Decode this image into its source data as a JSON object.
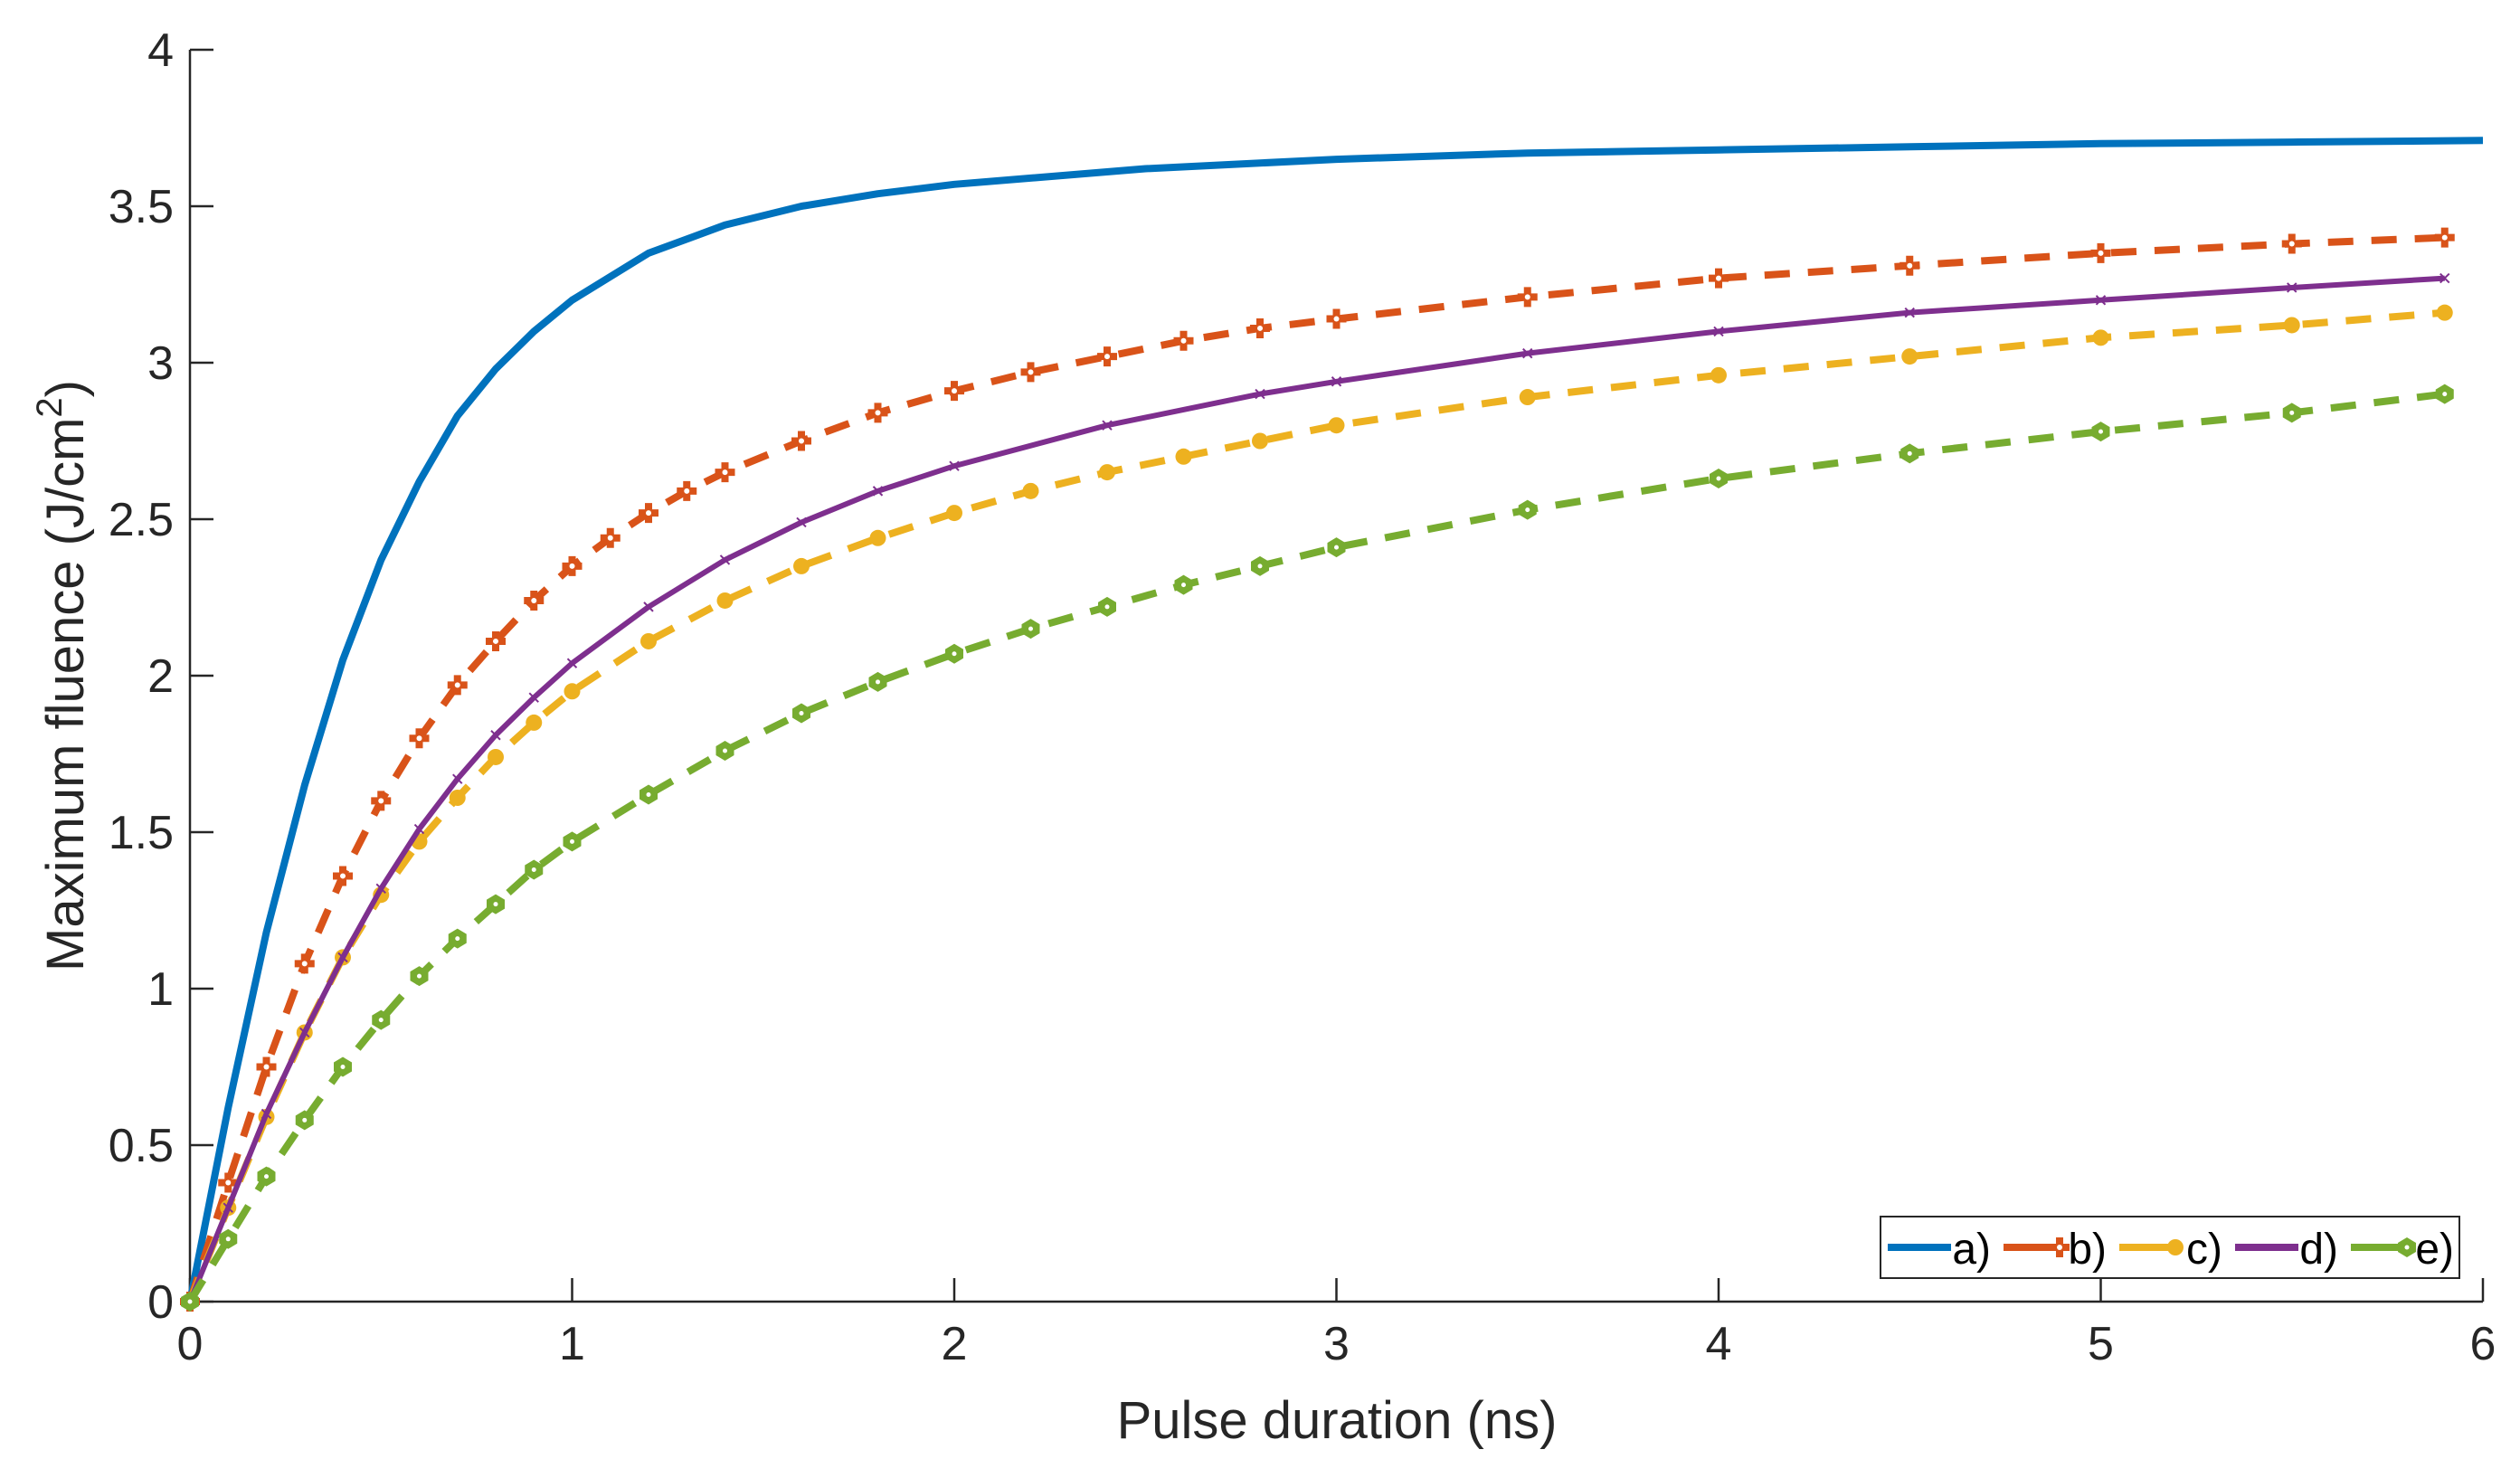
{
  "chart_data": {
    "type": "line",
    "title": "",
    "xlabel": "Pulse duration (ns)",
    "ylabel_main": "Maximum fluence (J/cm",
    "ylabel_sup": "2",
    "ylabel_close": ")",
    "xlim": [
      0,
      6
    ],
    "ylim": [
      0,
      4
    ],
    "xticks": [
      "0",
      "1",
      "2",
      "3",
      "4",
      "5",
      "6"
    ],
    "yticks": [
      "0",
      "0.5",
      "1",
      "1.5",
      "2",
      "2.5",
      "3",
      "3.5",
      "4"
    ],
    "grid": false,
    "legend_placement": "bottom-right",
    "series": [
      {
        "name": "a)",
        "color": "#0072BD",
        "style": "solid",
        "marker": "none",
        "x": [
          0,
          0.1,
          0.2,
          0.3,
          0.4,
          0.5,
          0.6,
          0.7,
          0.8,
          0.9,
          1.0,
          1.2,
          1.4,
          1.6,
          1.8,
          2.0,
          2.5,
          3.0,
          3.5,
          4.0,
          4.5,
          5.0,
          5.5,
          6.0
        ],
        "y": [
          0,
          0.62,
          1.18,
          1.65,
          2.05,
          2.37,
          2.62,
          2.83,
          2.98,
          3.1,
          3.2,
          3.35,
          3.44,
          3.5,
          3.54,
          3.57,
          3.62,
          3.65,
          3.67,
          3.68,
          3.69,
          3.7,
          3.705,
          3.71
        ]
      },
      {
        "name": "b)",
        "color": "#D95319",
        "style": "dashed",
        "marker": "cross",
        "x": [
          0,
          0.1,
          0.2,
          0.3,
          0.4,
          0.5,
          0.6,
          0.7,
          0.8,
          0.9,
          1.0,
          1.1,
          1.2,
          1.3,
          1.4,
          1.6,
          1.8,
          2.0,
          2.2,
          2.4,
          2.6,
          2.8,
          3.0,
          3.5,
          4.0,
          4.5,
          5.0,
          5.5,
          5.9
        ],
        "y": [
          0,
          0.38,
          0.75,
          1.08,
          1.36,
          1.6,
          1.8,
          1.97,
          2.11,
          2.24,
          2.35,
          2.44,
          2.52,
          2.59,
          2.65,
          2.75,
          2.84,
          2.91,
          2.97,
          3.02,
          3.07,
          3.11,
          3.14,
          3.21,
          3.27,
          3.31,
          3.35,
          3.38,
          3.4
        ]
      },
      {
        "name": "c)",
        "color": "#EDB120",
        "style": "dashed",
        "marker": "circle",
        "x": [
          0,
          0.1,
          0.2,
          0.3,
          0.4,
          0.5,
          0.6,
          0.7,
          0.8,
          0.9,
          1.0,
          1.2,
          1.4,
          1.6,
          1.8,
          2.0,
          2.2,
          2.4,
          2.6,
          2.8,
          3.0,
          3.5,
          4.0,
          4.5,
          5.0,
          5.5,
          5.9
        ],
        "y": [
          0,
          0.3,
          0.59,
          0.86,
          1.1,
          1.3,
          1.47,
          1.61,
          1.74,
          1.85,
          1.95,
          2.11,
          2.24,
          2.35,
          2.44,
          2.52,
          2.59,
          2.65,
          2.7,
          2.75,
          2.8,
          2.89,
          2.96,
          3.02,
          3.08,
          3.12,
          3.16
        ]
      },
      {
        "name": "d)",
        "color": "#7E2F8E",
        "style": "solid",
        "marker": "small",
        "x": [
          0,
          0.1,
          0.2,
          0.3,
          0.4,
          0.5,
          0.6,
          0.7,
          0.8,
          0.9,
          1.0,
          1.2,
          1.4,
          1.6,
          1.8,
          2.0,
          2.4,
          2.8,
          3.0,
          3.5,
          4.0,
          4.5,
          5.0,
          5.5,
          5.9
        ],
        "y": [
          0,
          0.3,
          0.6,
          0.86,
          1.1,
          1.32,
          1.51,
          1.67,
          1.81,
          1.93,
          2.04,
          2.22,
          2.37,
          2.49,
          2.59,
          2.67,
          2.8,
          2.9,
          2.94,
          3.03,
          3.1,
          3.16,
          3.2,
          3.24,
          3.27
        ]
      },
      {
        "name": "e)",
        "color": "#77AC30",
        "style": "dashed",
        "marker": "hexagram",
        "x": [
          0,
          0.1,
          0.2,
          0.3,
          0.4,
          0.5,
          0.6,
          0.7,
          0.8,
          0.9,
          1.0,
          1.2,
          1.4,
          1.6,
          1.8,
          2.0,
          2.2,
          2.4,
          2.6,
          2.8,
          3.0,
          3.5,
          4.0,
          4.5,
          5.0,
          5.5,
          5.9
        ],
        "y": [
          0,
          0.2,
          0.4,
          0.58,
          0.75,
          0.9,
          1.04,
          1.16,
          1.27,
          1.38,
          1.47,
          1.62,
          1.76,
          1.88,
          1.98,
          2.07,
          2.15,
          2.22,
          2.29,
          2.35,
          2.41,
          2.53,
          2.63,
          2.71,
          2.78,
          2.84,
          2.9
        ]
      }
    ]
  }
}
